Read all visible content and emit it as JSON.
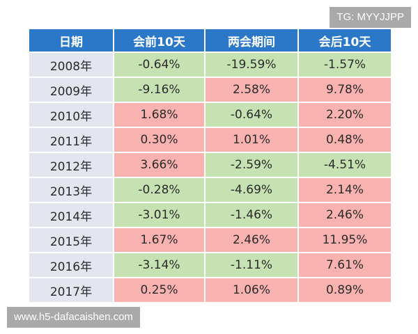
{
  "watermarks": {
    "top_right": "TG: MYYJJPP",
    "bottom_left": "www.h5-dafacaishen.com"
  },
  "table": {
    "headers": [
      "日期",
      "会前10天",
      "两会期间",
      "会后10天"
    ],
    "rows": [
      {
        "year": "2008年",
        "before": "-0.64%",
        "during": "-19.59%",
        "after": "-1.57%"
      },
      {
        "year": "2009年",
        "before": "-9.16%",
        "during": "2.58%",
        "after": "9.78%"
      },
      {
        "year": "2010年",
        "before": "1.68%",
        "during": "-0.64%",
        "after": "2.20%"
      },
      {
        "year": "2011年",
        "before": "0.30%",
        "during": "1.01%",
        "after": "0.48%"
      },
      {
        "year": "2012年",
        "before": "3.66%",
        "during": "-2.59%",
        "after": "-4.51%"
      },
      {
        "year": "2013年",
        "before": "-0.28%",
        "during": "-4.69%",
        "after": "2.14%"
      },
      {
        "year": "2014年",
        "before": "-3.01%",
        "during": "-1.46%",
        "after": "2.46%"
      },
      {
        "year": "2015年",
        "before": "1.67%",
        "during": "2.46%",
        "after": "11.95%"
      },
      {
        "year": "2016年",
        "before": "-3.14%",
        "during": "-1.11%",
        "after": "7.61%"
      },
      {
        "year": "2017年",
        "before": "0.25%",
        "during": "1.06%",
        "after": "0.89%"
      }
    ]
  },
  "colors": {
    "header": "#2a78c7",
    "positive": "#f8b2b0",
    "negative": "#c6e2b3",
    "year_cell": "#e4e6ef"
  }
}
